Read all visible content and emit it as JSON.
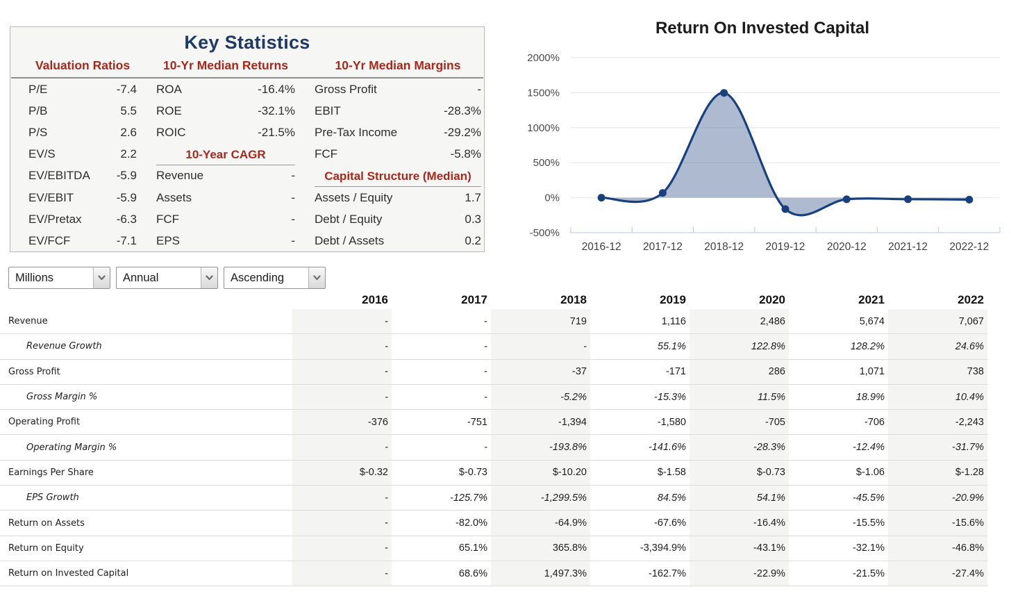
{
  "theme": {
    "navy": "#1f3a63",
    "red": "#a9281c",
    "chart_line": "#17407d",
    "chart_fill": "rgba(106,129,168,0.55)"
  },
  "key_statistics": {
    "title": "Key Statistics",
    "columns": [
      {
        "header": "Valuation Ratios",
        "items": [
          {
            "label": "P/E",
            "value": "-7.4"
          },
          {
            "label": "P/B",
            "value": "5.5"
          },
          {
            "label": "P/S",
            "value": "2.6"
          },
          {
            "label": "EV/S",
            "value": "2.2"
          },
          {
            "label": "EV/EBITDA",
            "value": "-5.9"
          },
          {
            "label": "EV/EBIT",
            "value": "-5.9"
          },
          {
            "label": "EV/Pretax",
            "value": "-6.3"
          },
          {
            "label": "EV/FCF",
            "value": "-7.1"
          }
        ]
      },
      {
        "header": "10-Yr Median Returns",
        "items": [
          {
            "label": "ROA",
            "value": "-16.4%"
          },
          {
            "label": "ROE",
            "value": "-32.1%"
          },
          {
            "label": "ROIC",
            "value": "-21.5%"
          },
          {
            "subheader": "10-Year CAGR"
          },
          {
            "label": "Revenue",
            "value": "-"
          },
          {
            "label": "Assets",
            "value": "-"
          },
          {
            "label": "FCF",
            "value": "-"
          },
          {
            "label": "EPS",
            "value": "-"
          }
        ]
      },
      {
        "header": "10-Yr Median Margins",
        "items": [
          {
            "label": "Gross Profit",
            "value": "-"
          },
          {
            "label": "EBIT",
            "value": "-28.3%"
          },
          {
            "label": "Pre-Tax Income",
            "value": "-29.2%"
          },
          {
            "label": "FCF",
            "value": "-5.8%"
          },
          {
            "subheader": "Capital Structure (Median)"
          },
          {
            "label": "Assets / Equity",
            "value": "1.7"
          },
          {
            "label": "Debt / Equity",
            "value": "0.3"
          },
          {
            "label": "Debt / Assets",
            "value": "0.2"
          }
        ]
      }
    ]
  },
  "controls": {
    "unit": "Millions",
    "period": "Annual",
    "order": "Ascending"
  },
  "chart_data": {
    "type": "area",
    "title": "Return On Invested Capital",
    "x": [
      "2016-12",
      "2017-12",
      "2018-12",
      "2019-12",
      "2020-12",
      "2021-12",
      "2022-12"
    ],
    "values": [
      0,
      68.6,
      1497.3,
      -162.7,
      -22.9,
      -21.5,
      -27.4
    ],
    "ylim": [
      -500,
      2000
    ],
    "ytick_values": [
      2000,
      1500,
      1000,
      500,
      0,
      -500
    ],
    "ytick_suffix": "%",
    "grid": true,
    "legend": "none",
    "line_color": "#17407d",
    "fill_color": "rgba(106,129,168,0.55)"
  },
  "table": {
    "year_headers": [
      "2016",
      "2017",
      "2018",
      "2019",
      "2020",
      "2021",
      "2022"
    ],
    "rows": [
      {
        "label": "Revenue",
        "italic": false,
        "values": [
          "-",
          "-",
          "719",
          "1,116",
          "2,486",
          "5,674",
          "7,067"
        ]
      },
      {
        "label": "Revenue Growth",
        "italic": true,
        "values": [
          "-",
          "-",
          "-",
          "55.1%",
          "122.8%",
          "128.2%",
          "24.6%"
        ]
      },
      {
        "label": "Gross Profit",
        "italic": false,
        "values": [
          "-",
          "-",
          "-37",
          "-171",
          "286",
          "1,071",
          "738"
        ]
      },
      {
        "label": "Gross Margin %",
        "italic": true,
        "values": [
          "-",
          "-",
          "-5.2%",
          "-15.3%",
          "11.5%",
          "18.9%",
          "10.4%"
        ]
      },
      {
        "label": "Operating Profit",
        "italic": false,
        "values": [
          "-376",
          "-751",
          "-1,394",
          "-1,580",
          "-705",
          "-706",
          "-2,243"
        ]
      },
      {
        "label": "Operating Margin %",
        "italic": true,
        "values": [
          "-",
          "-",
          "-193.8%",
          "-141.6%",
          "-28.3%",
          "-12.4%",
          "-31.7%"
        ]
      },
      {
        "label": "Earnings Per Share",
        "italic": false,
        "values": [
          "$-0.32",
          "$-0.73",
          "$-10.20",
          "$-1.58",
          "$-0.73",
          "$-1.06",
          "$-1.28"
        ]
      },
      {
        "label": "EPS Growth",
        "italic": true,
        "values": [
          "-",
          "-125.7%",
          "-1,299.5%",
          "84.5%",
          "54.1%",
          "-45.5%",
          "-20.9%"
        ]
      },
      {
        "label": "Return on Assets",
        "italic": false,
        "values": [
          "-",
          "-82.0%",
          "-64.9%",
          "-67.6%",
          "-16.4%",
          "-15.5%",
          "-15.6%"
        ]
      },
      {
        "label": "Return on Equity",
        "italic": false,
        "values": [
          "-",
          "65.1%",
          "365.8%",
          "-3,394.9%",
          "-43.1%",
          "-32.1%",
          "-46.8%"
        ]
      },
      {
        "label": "Return on Invested Capital",
        "italic": false,
        "values": [
          "-",
          "68.6%",
          "1,497.3%",
          "-162.7%",
          "-22.9%",
          "-21.5%",
          "-27.4%"
        ]
      }
    ]
  }
}
